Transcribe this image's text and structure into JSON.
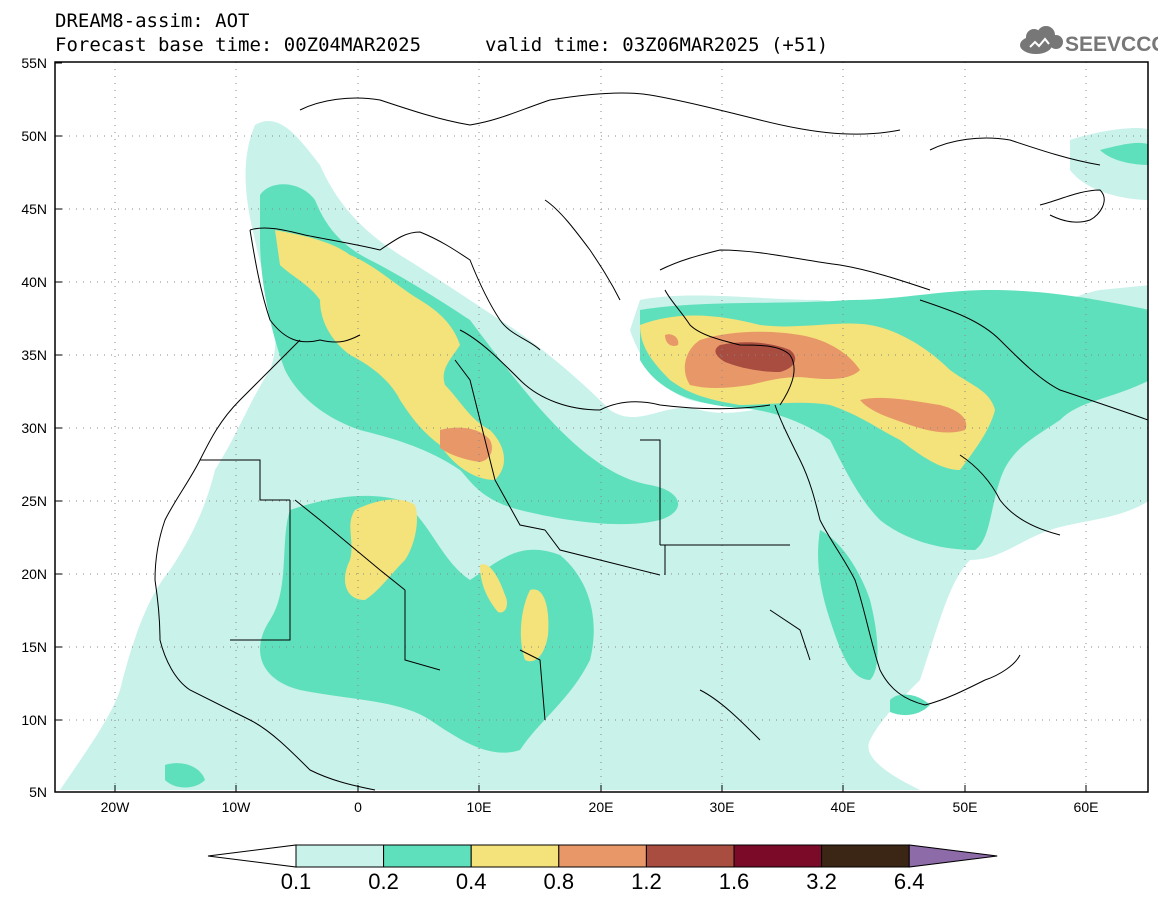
{
  "header": {
    "title": "DREAM8-assim: AOT",
    "base_time": "Forecast base time: 00Z04MAR2025",
    "valid_time": "valid time: 03Z06MAR2025 (+51)"
  },
  "logo": {
    "text": "SEEVCCC",
    "icon": "cloud-icon"
  },
  "map": {
    "lat_labels": [
      "55N",
      "50N",
      "45N",
      "40N",
      "35N",
      "30N",
      "25N",
      "20N",
      "15N",
      "10N",
      "5N"
    ],
    "lon_labels": [
      "20W",
      "10W",
      "0",
      "10E",
      "20E",
      "30E",
      "40E",
      "50E",
      "60E"
    ],
    "lon_range": [
      -25,
      65
    ],
    "lat_range": [
      5,
      55
    ],
    "grid": "dotted"
  },
  "colorbar": {
    "labels": [
      "0.1",
      "0.2",
      "0.4",
      "0.8",
      "1.2",
      "1.6",
      "3.2",
      "6.4"
    ],
    "colors": [
      "#c8f2ea",
      "#5fe0bc",
      "#f4e27a",
      "#e89868",
      "#a94d40",
      "#7a0a28",
      "#3b2514",
      "#8d6aa8"
    ],
    "below_color": "#ffffff"
  }
}
